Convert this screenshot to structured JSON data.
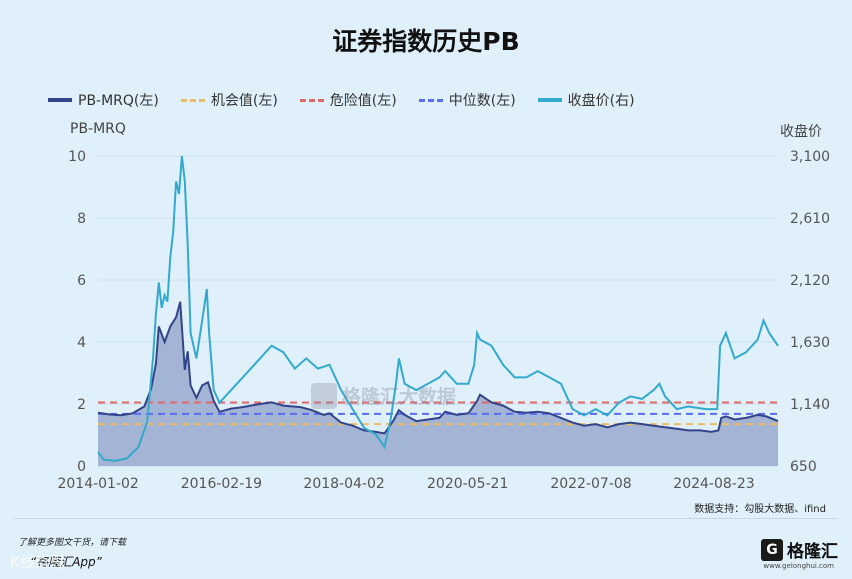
{
  "title": "证券指数历史PB",
  "legend": [
    {
      "label": "PB-MRQ(左)",
      "color": "#33448a",
      "style": "solid"
    },
    {
      "label": "机会值(左)",
      "color": "#e8bc6a",
      "style": "dashed"
    },
    {
      "label": "危险值(左)",
      "color": "#e06a6a",
      "style": "dashed"
    },
    {
      "label": "中位数(左)",
      "color": "#5b6cf0",
      "style": "dashed"
    },
    {
      "label": "收盘价(右)",
      "color": "#33a9cc",
      "style": "solid"
    }
  ],
  "watermark": "格隆汇大数据",
  "source": "数据支持：勾股大数据、ifind",
  "footer": {
    "note": "了解更多图文干货，请下载",
    "app": "“格隆汇App”",
    "brand": "格隆汇",
    "brand_mark": "G",
    "brand_url": "www.gelonghui.com",
    "bottom_watermark": "K线奇思"
  },
  "chart_data": {
    "type": "line",
    "x_labels": [
      "2014-01-02",
      "2016-02-19",
      "2018-04-02",
      "2020-05-21",
      "2022-07-08",
      "2024-08-23"
    ],
    "y_left_label": "PB-MRQ",
    "y_right_label": "收盘价",
    "y_left_ticks": [
      "0",
      "2",
      "4",
      "6",
      "8",
      "10"
    ],
    "y_right_ticks": [
      "650",
      "1,140",
      "1,630",
      "2,120",
      "2,610",
      "3,100"
    ],
    "ylim_left": [
      0,
      10
    ],
    "ylim_right": [
      650,
      3100
    ],
    "x_range": [
      2014.0,
      2025.75
    ],
    "thresholds": {
      "opportunity": 1.35,
      "danger": 2.05,
      "median": 1.68
    },
    "series": [
      {
        "name": "PB-MRQ(左)",
        "axis": "left",
        "area": true,
        "points": [
          [
            2014.0,
            1.72
          ],
          [
            2014.2,
            1.66
          ],
          [
            2014.4,
            1.64
          ],
          [
            2014.6,
            1.7
          ],
          [
            2014.8,
            1.92
          ],
          [
            2014.92,
            2.5
          ],
          [
            2015.0,
            3.3
          ],
          [
            2015.05,
            4.5
          ],
          [
            2015.15,
            4.0
          ],
          [
            2015.25,
            4.5
          ],
          [
            2015.35,
            4.8
          ],
          [
            2015.42,
            5.3
          ],
          [
            2015.46,
            4.2
          ],
          [
            2015.5,
            3.1
          ],
          [
            2015.55,
            3.7
          ],
          [
            2015.6,
            2.6
          ],
          [
            2015.7,
            2.2
          ],
          [
            2015.8,
            2.6
          ],
          [
            2015.9,
            2.7
          ],
          [
            2016.0,
            2.1
          ],
          [
            2016.1,
            1.75
          ],
          [
            2016.3,
            1.85
          ],
          [
            2016.5,
            1.9
          ],
          [
            2016.8,
            2.0
          ],
          [
            2017.0,
            2.05
          ],
          [
            2017.2,
            1.95
          ],
          [
            2017.5,
            1.9
          ],
          [
            2017.7,
            1.8
          ],
          [
            2017.9,
            1.65
          ],
          [
            2018.0,
            1.7
          ],
          [
            2018.2,
            1.4
          ],
          [
            2018.4,
            1.3
          ],
          [
            2018.6,
            1.15
          ],
          [
            2018.8,
            1.1
          ],
          [
            2018.95,
            1.05
          ],
          [
            2019.1,
            1.45
          ],
          [
            2019.2,
            1.8
          ],
          [
            2019.3,
            1.65
          ],
          [
            2019.5,
            1.45
          ],
          [
            2019.7,
            1.5
          ],
          [
            2019.9,
            1.55
          ],
          [
            2020.0,
            1.75
          ],
          [
            2020.2,
            1.65
          ],
          [
            2020.4,
            1.7
          ],
          [
            2020.55,
            2.1
          ],
          [
            2020.6,
            2.3
          ],
          [
            2020.8,
            2.05
          ],
          [
            2021.0,
            1.95
          ],
          [
            2021.2,
            1.75
          ],
          [
            2021.4,
            1.72
          ],
          [
            2021.6,
            1.75
          ],
          [
            2021.8,
            1.7
          ],
          [
            2022.0,
            1.55
          ],
          [
            2022.2,
            1.4
          ],
          [
            2022.4,
            1.3
          ],
          [
            2022.6,
            1.35
          ],
          [
            2022.8,
            1.25
          ],
          [
            2023.0,
            1.35
          ],
          [
            2023.2,
            1.4
          ],
          [
            2023.4,
            1.35
          ],
          [
            2023.6,
            1.3
          ],
          [
            2023.8,
            1.25
          ],
          [
            2024.0,
            1.2
          ],
          [
            2024.2,
            1.15
          ],
          [
            2024.4,
            1.15
          ],
          [
            2024.6,
            1.1
          ],
          [
            2024.72,
            1.15
          ],
          [
            2024.77,
            1.55
          ],
          [
            2024.85,
            1.6
          ],
          [
            2025.0,
            1.5
          ],
          [
            2025.2,
            1.55
          ],
          [
            2025.4,
            1.65
          ],
          [
            2025.55,
            1.6
          ],
          [
            2025.75,
            1.45
          ]
        ]
      },
      {
        "name": "收盘价(右)",
        "axis": "right",
        "area": false,
        "points": [
          [
            2014.0,
            760
          ],
          [
            2014.1,
            700
          ],
          [
            2014.3,
            690
          ],
          [
            2014.5,
            710
          ],
          [
            2014.7,
            800
          ],
          [
            2014.85,
            1000
          ],
          [
            2014.95,
            1500
          ],
          [
            2015.0,
            1850
          ],
          [
            2015.05,
            2100
          ],
          [
            2015.1,
            1900
          ],
          [
            2015.15,
            2000
          ],
          [
            2015.2,
            1950
          ],
          [
            2015.25,
            2300
          ],
          [
            2015.3,
            2500
          ],
          [
            2015.35,
            2900
          ],
          [
            2015.4,
            2800
          ],
          [
            2015.45,
            3100
          ],
          [
            2015.5,
            2900
          ],
          [
            2015.55,
            2400
          ],
          [
            2015.6,
            1700
          ],
          [
            2015.7,
            1500
          ],
          [
            2015.8,
            1800
          ],
          [
            2015.88,
            2050
          ],
          [
            2015.92,
            1700
          ],
          [
            2016.0,
            1250
          ],
          [
            2016.1,
            1150
          ],
          [
            2016.3,
            1250
          ],
          [
            2016.5,
            1350
          ],
          [
            2016.7,
            1450
          ],
          [
            2016.9,
            1550
          ],
          [
            2017.0,
            1600
          ],
          [
            2017.2,
            1550
          ],
          [
            2017.4,
            1420
          ],
          [
            2017.6,
            1500
          ],
          [
            2017.8,
            1420
          ],
          [
            2018.0,
            1450
          ],
          [
            2018.2,
            1250
          ],
          [
            2018.4,
            1100
          ],
          [
            2018.6,
            950
          ],
          [
            2018.8,
            900
          ],
          [
            2018.95,
            800
          ],
          [
            2019.05,
            1000
          ],
          [
            2019.15,
            1300
          ],
          [
            2019.2,
            1500
          ],
          [
            2019.3,
            1300
          ],
          [
            2019.5,
            1250
          ],
          [
            2019.7,
            1300
          ],
          [
            2019.9,
            1350
          ],
          [
            2020.0,
            1400
          ],
          [
            2020.2,
            1300
          ],
          [
            2020.4,
            1300
          ],
          [
            2020.5,
            1450
          ],
          [
            2020.55,
            1700
          ],
          [
            2020.6,
            1650
          ],
          [
            2020.8,
            1600
          ],
          [
            2021.0,
            1450
          ],
          [
            2021.2,
            1350
          ],
          [
            2021.4,
            1350
          ],
          [
            2021.6,
            1400
          ],
          [
            2021.8,
            1350
          ],
          [
            2022.0,
            1300
          ],
          [
            2022.2,
            1100
          ],
          [
            2022.4,
            1050
          ],
          [
            2022.6,
            1100
          ],
          [
            2022.8,
            1050
          ],
          [
            2023.0,
            1150
          ],
          [
            2023.2,
            1200
          ],
          [
            2023.4,
            1180
          ],
          [
            2023.6,
            1250
          ],
          [
            2023.7,
            1300
          ],
          [
            2023.8,
            1200
          ],
          [
            2024.0,
            1100
          ],
          [
            2024.2,
            1120
          ],
          [
            2024.5,
            1100
          ],
          [
            2024.7,
            1100
          ],
          [
            2024.75,
            1600
          ],
          [
            2024.85,
            1700
          ],
          [
            2025.0,
            1500
          ],
          [
            2025.2,
            1550
          ],
          [
            2025.4,
            1650
          ],
          [
            2025.5,
            1800
          ],
          [
            2025.6,
            1700
          ],
          [
            2025.75,
            1600
          ]
        ]
      }
    ]
  }
}
